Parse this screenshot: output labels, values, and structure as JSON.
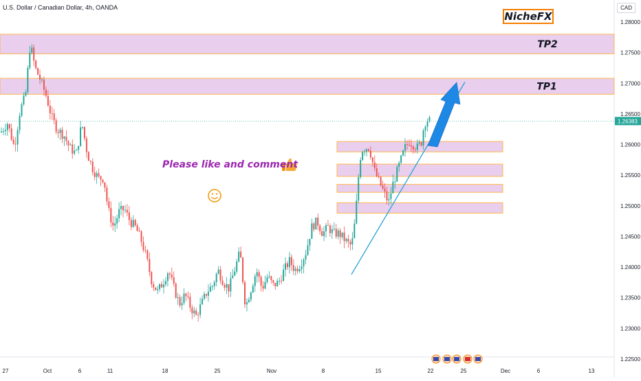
{
  "header": {
    "title": "U.S. Dollar / Canadian Dollar, 4h, OANDA",
    "currency": "CAD",
    "brand": "NicheFX"
  },
  "annotations": {
    "message": "Please like and comment",
    "icons": [
      "thumbs-up-icon",
      "smiley-icon",
      "up-arrow-icon"
    ],
    "colors": {
      "zone_fill": "#e1bee7",
      "zone_border": "#ffb74d",
      "trendline": "#26a0da",
      "arrow": "#1e88e5",
      "message": "#9c27b0",
      "brand_border": "#f57c00",
      "up_candle": "#26a69a",
      "down_candle": "#ef5350",
      "price_badge": "#26a69a"
    }
  },
  "chart_data": {
    "type": "candlestick",
    "symbol": "USDCAD",
    "interval": "4h",
    "ylim": [
      1.2225,
      1.2825
    ],
    "y_ticks": [
      "1.28000",
      "1.27500",
      "1.27000",
      "1.26500",
      "1.26000",
      "1.25500",
      "1.25000",
      "1.24500",
      "1.24000",
      "1.23500",
      "1.23000",
      "1.22500"
    ],
    "x_ticks": [
      "27",
      "Oct",
      "6",
      "11",
      "18",
      "25",
      "Nov",
      "8",
      "15",
      "22",
      "25",
      "Dec",
      "6",
      "13"
    ],
    "last_price": "1.26383",
    "price_path": [
      [
        0,
        1.262
      ],
      [
        10,
        1.2635
      ],
      [
        20,
        1.2595
      ],
      [
        28,
        1.2655
      ],
      [
        36,
        1.268
      ],
      [
        43,
        1.2765
      ],
      [
        50,
        1.2725
      ],
      [
        58,
        1.2705
      ],
      [
        66,
        1.268
      ],
      [
        74,
        1.2645
      ],
      [
        82,
        1.2625
      ],
      [
        92,
        1.2615
      ],
      [
        100,
        1.2595
      ],
      [
        110,
        1.2585
      ],
      [
        118,
        1.2635
      ],
      [
        126,
        1.2585
      ],
      [
        134,
        1.256
      ],
      [
        142,
        1.2545
      ],
      [
        150,
        1.2545
      ],
      [
        156,
        1.2495
      ],
      [
        164,
        1.2465
      ],
      [
        172,
        1.249
      ],
      [
        180,
        1.2495
      ],
      [
        188,
        1.2475
      ],
      [
        196,
        1.2465
      ],
      [
        204,
        1.2445
      ],
      [
        212,
        1.2415
      ],
      [
        220,
        1.2375
      ],
      [
        228,
        1.236
      ],
      [
        236,
        1.2375
      ],
      [
        244,
        1.2395
      ],
      [
        252,
        1.2365
      ],
      [
        260,
        1.234
      ],
      [
        268,
        1.2355
      ],
      [
        276,
        1.2335
      ],
      [
        284,
        1.232
      ],
      [
        292,
        1.234
      ],
      [
        300,
        1.236
      ],
      [
        308,
        1.237
      ],
      [
        316,
        1.2395
      ],
      [
        324,
        1.2375
      ],
      [
        332,
        1.2365
      ],
      [
        340,
        1.2395
      ],
      [
        348,
        1.2425
      ],
      [
        356,
        1.2335
      ],
      [
        364,
        1.2365
      ],
      [
        372,
        1.2395
      ],
      [
        380,
        1.2365
      ],
      [
        388,
        1.2385
      ],
      [
        396,
        1.237
      ],
      [
        404,
        1.2375
      ],
      [
        412,
        1.2395
      ],
      [
        420,
        1.241
      ],
      [
        428,
        1.2395
      ],
      [
        436,
        1.2405
      ],
      [
        444,
        1.2425
      ],
      [
        452,
        1.2465
      ],
      [
        460,
        1.2475
      ],
      [
        468,
        1.2455
      ],
      [
        476,
        1.2465
      ],
      [
        484,
        1.2455
      ],
      [
        492,
        1.2455
      ],
      [
        500,
        1.2445
      ],
      [
        508,
        1.2435
      ],
      [
        512,
        1.2445
      ],
      [
        516,
        1.2485
      ],
      [
        520,
        1.2545
      ],
      [
        524,
        1.259
      ],
      [
        530,
        1.2595
      ],
      [
        536,
        1.2595
      ],
      [
        540,
        1.2575
      ],
      [
        544,
        1.2555
      ],
      [
        548,
        1.2545
      ],
      [
        552,
        1.2535
      ],
      [
        556,
        1.2525
      ],
      [
        560,
        1.2515
      ],
      [
        564,
        1.2505
      ],
      [
        570,
        1.2535
      ],
      [
        576,
        1.2555
      ],
      [
        582,
        1.2575
      ],
      [
        588,
        1.2595
      ],
      [
        594,
        1.2605
      ],
      [
        600,
        1.26
      ],
      [
        606,
        1.2595
      ],
      [
        612,
        1.2605
      ],
      [
        616,
        1.2635
      ],
      [
        620,
        1.264
      ],
      [
        626,
        1.2638
      ]
    ],
    "zones": [
      {
        "label": "TP2",
        "y_top": 1.278,
        "y_bottom": 1.2748
      },
      {
        "label": "TP1",
        "y_top": 1.2708,
        "y_bottom": 1.2682
      },
      {
        "label": "",
        "y_top": 1.2605,
        "y_bottom": 1.2588
      },
      {
        "label": "",
        "y_top": 1.2568,
        "y_bottom": 1.2548
      },
      {
        "label": "",
        "y_top": 1.2535,
        "y_bottom": 1.2522
      },
      {
        "label": "",
        "y_top": 1.2505,
        "y_bottom": 1.2488
      }
    ],
    "trendline": {
      "from": [
        1.2388
      ],
      "to": [
        1.2702
      ]
    }
  }
}
